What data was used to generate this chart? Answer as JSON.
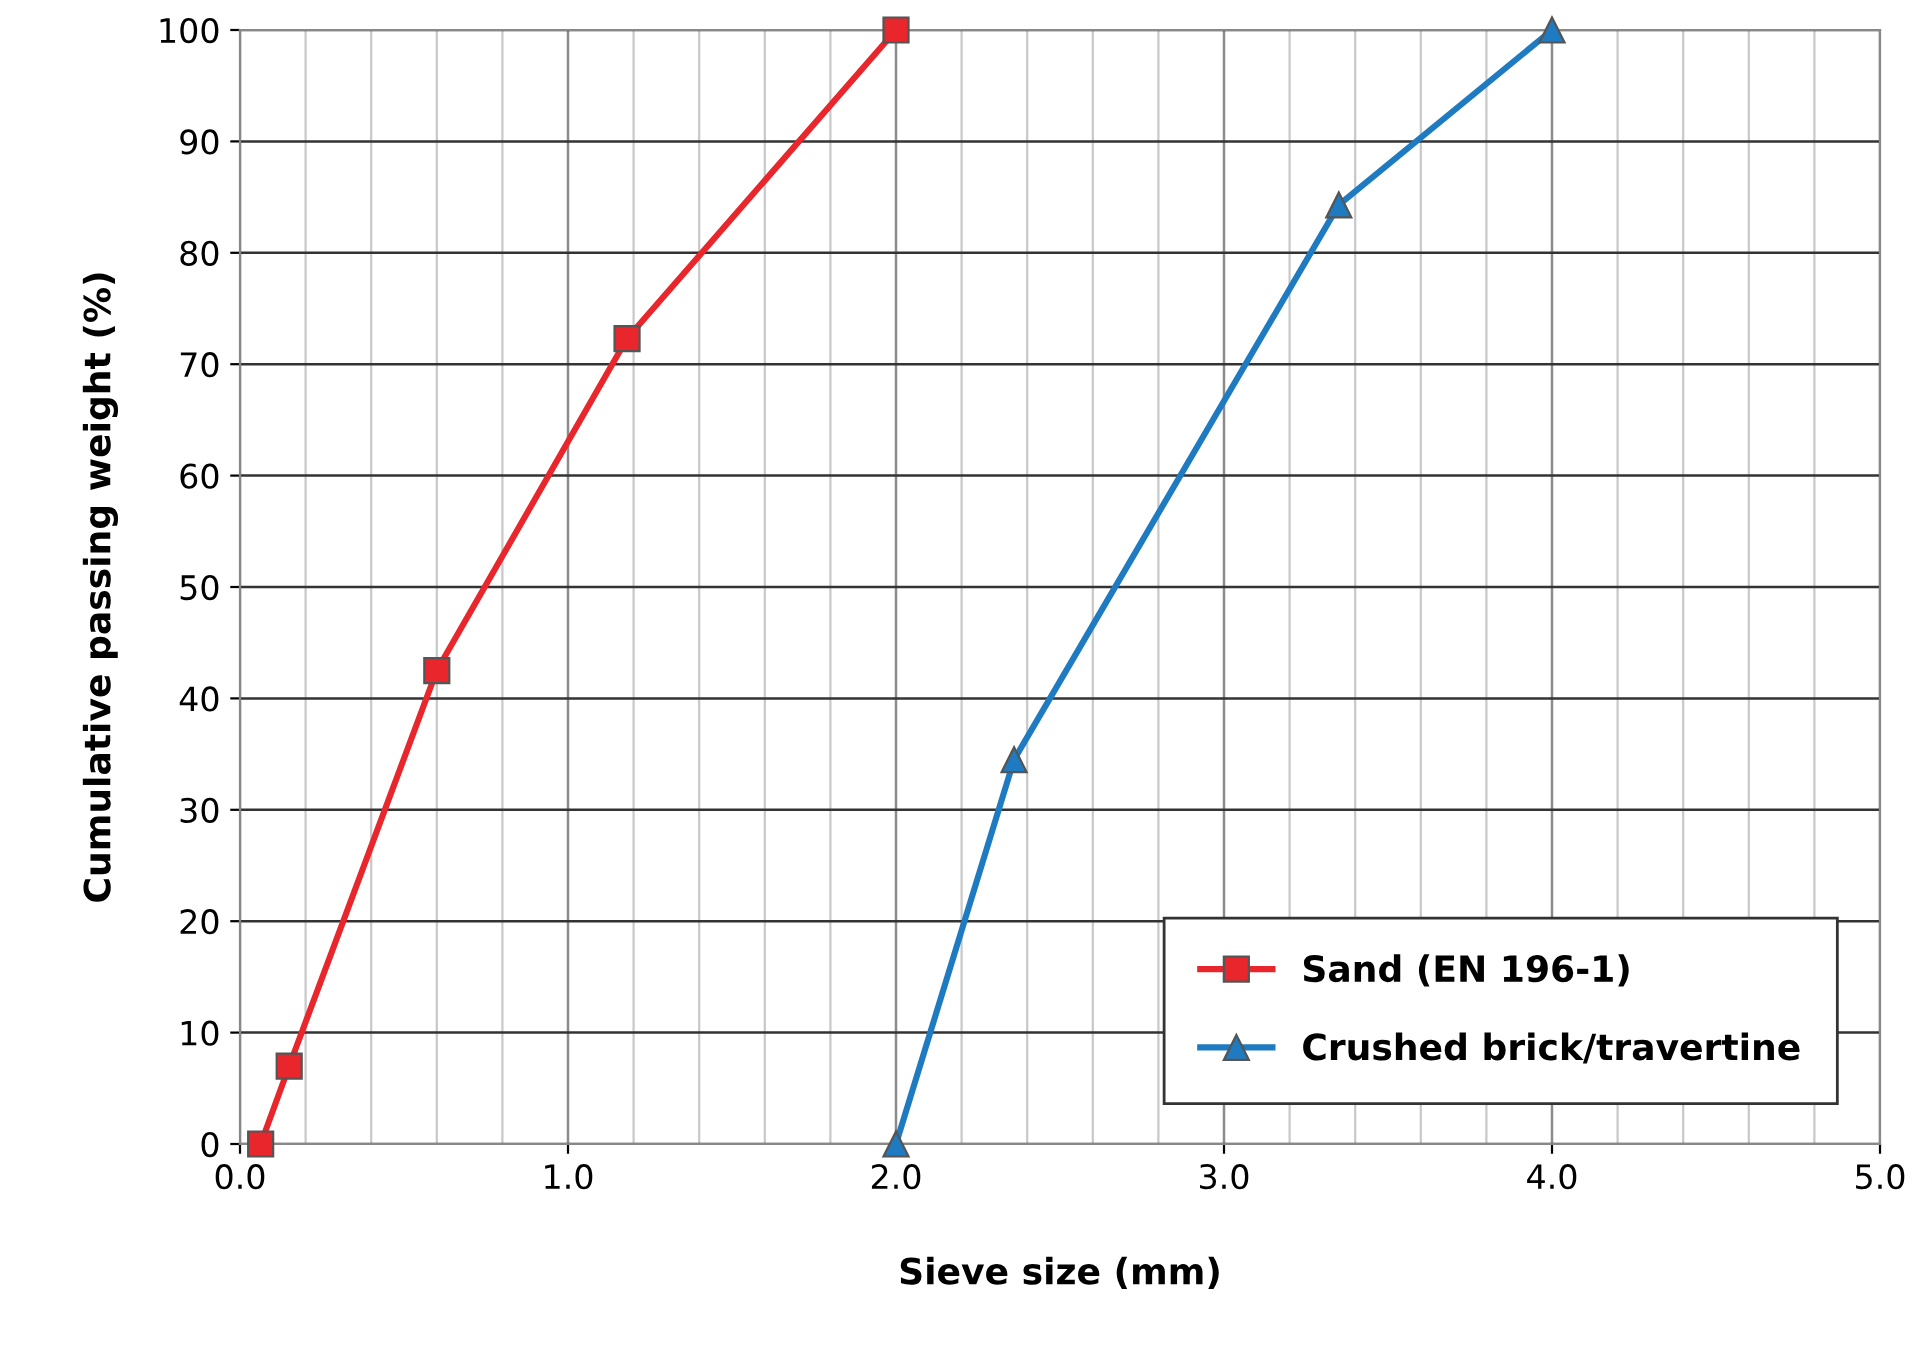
{
  "chart_data": {
    "type": "line",
    "xlabel": "Sieve size (mm)",
    "ylabel": "Cumulative passing weight (%)",
    "series": [
      {
        "name": "Sand (EN 196-1)",
        "color": "#e8262b",
        "marker": "square",
        "x": [
          0.063,
          0.15,
          0.6,
          1.18,
          2.0
        ],
        "values": [
          0,
          7,
          42.5,
          72.3,
          100
        ]
      },
      {
        "name": "Crushed brick/travertine",
        "color": "#1f7bc1",
        "marker": "triangle",
        "x": [
          2.0,
          2.36,
          3.35,
          4.0
        ],
        "values": [
          0,
          34.5,
          84.3,
          100
        ]
      }
    ],
    "xlim": [
      0,
      5
    ],
    "xticks": [
      {
        "value": 0,
        "label": "0.0"
      },
      {
        "value": 1,
        "label": "1.0"
      },
      {
        "value": 2,
        "label": "2.0"
      },
      {
        "value": 3,
        "label": "3.0"
      },
      {
        "value": 4,
        "label": "4.0"
      },
      {
        "value": 5,
        "label": "5.0"
      }
    ],
    "ylim": [
      0,
      100
    ],
    "yticks": [
      0,
      10,
      20,
      30,
      40,
      50,
      60,
      70,
      80,
      90,
      100
    ],
    "grid": true,
    "legend": "bottom right",
    "line_style": "solid"
  }
}
